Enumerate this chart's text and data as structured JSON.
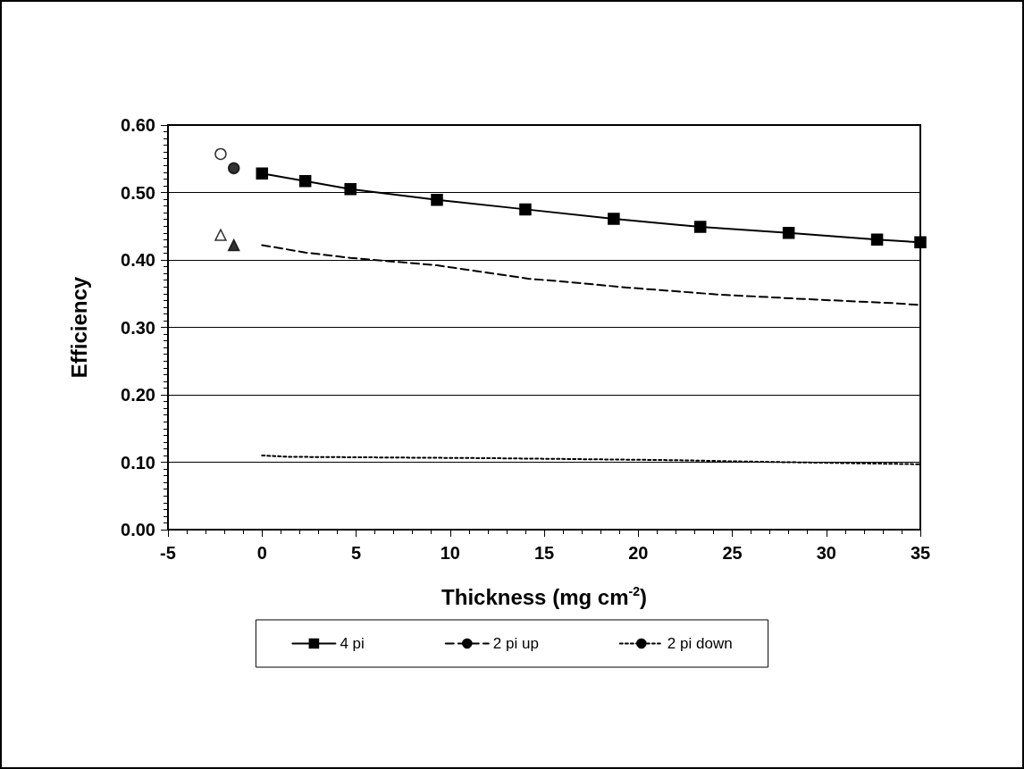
{
  "chart_data": {
    "type": "line",
    "xlabel": "Thickness (mg cm$^{-2}$)",
    "ylabel": "Efficiency",
    "xlim": [
      -5,
      35
    ],
    "xticks": [
      -5,
      0,
      5,
      10,
      15,
      20,
      25,
      30,
      35
    ],
    "ylim": [
      0,
      0.6
    ],
    "yticks": [
      {
        "value": 0,
        "label": "0.00"
      },
      {
        "value": 0.1,
        "label": "0.10"
      },
      {
        "value": 0.2,
        "label": "0.20"
      },
      {
        "value": 0.3,
        "label": "0.30"
      },
      {
        "value": 0.4,
        "label": "0.40"
      },
      {
        "value": 0.5,
        "label": "0.50"
      },
      {
        "value": 0.6,
        "label": "0.60"
      }
    ],
    "grid": "y",
    "legend": "bottom",
    "series": [
      {
        "name": "4 pi",
        "color": "#000000",
        "marker": "square",
        "line_style": "solid",
        "x": [
          0,
          2.3,
          4.7,
          9.3,
          14,
          18.7,
          23.3,
          28,
          32.7,
          35
        ],
        "values": [
          0.528,
          0.517,
          0.505,
          0.489,
          0.475,
          0.461,
          0.449,
          0.44,
          0.43,
          0.426
        ]
      },
      {
        "name": "2 pi up",
        "color": "#000000",
        "marker": "none",
        "line_style": "dashed",
        "x": [
          0,
          2.3,
          4.7,
          9.3,
          14.2,
          16,
          19.4,
          24.1,
          28.8,
          33.5,
          35
        ],
        "values": [
          0.422,
          0.411,
          0.403,
          0.392,
          0.372,
          0.368,
          0.359,
          0.349,
          0.342,
          0.336,
          0.333
        ]
      },
      {
        "name": "2 pi down",
        "color": "#000000",
        "marker": "none",
        "line_style": "dotted",
        "x": [
          0,
          1.4,
          12,
          22,
          25.7,
          35
        ],
        "values": [
          0.11,
          0.108,
          0.106,
          0.103,
          0.101,
          0.097
        ]
      },
      {
        "type": "scatter",
        "color": "#ffffff",
        "marker": "circle",
        "x": [
          -2.2
        ],
        "values": [
          0.557
        ]
      },
      {
        "type": "scatter",
        "color": "#000000",
        "marker": "circle",
        "x": [
          -1.5
        ],
        "values": [
          0.536
        ]
      },
      {
        "type": "scatter",
        "color": "#ffffff",
        "marker": "triangle",
        "x": [
          -2.2
        ],
        "values": [
          0.437
        ]
      },
      {
        "type": "scatter",
        "color": "#000000",
        "marker": "triangle",
        "x": [
          -1.5
        ],
        "values": [
          0.422
        ]
      }
    ]
  }
}
